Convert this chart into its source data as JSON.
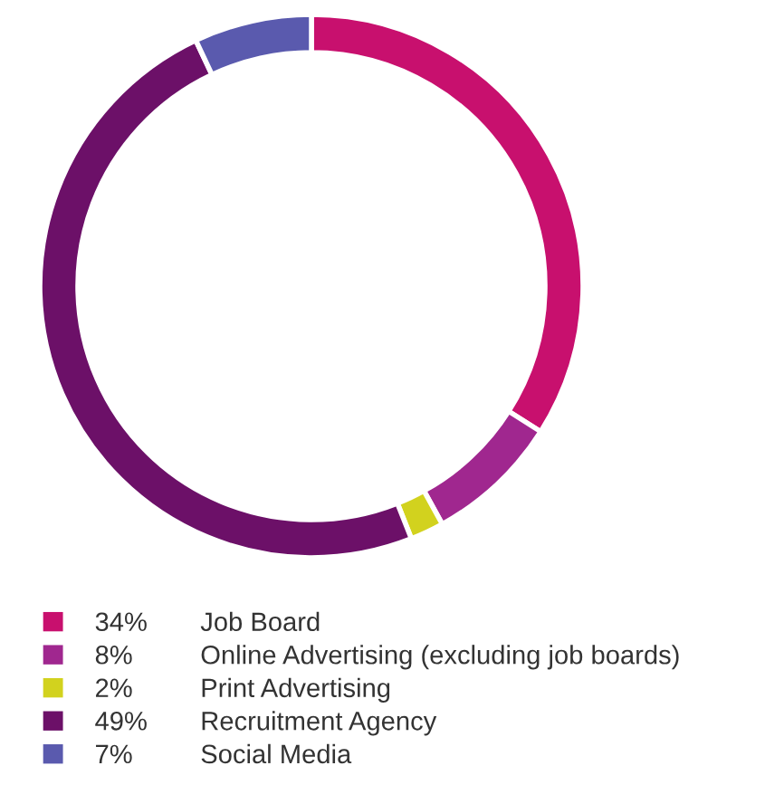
{
  "chart_data": {
    "type": "donut",
    "categories": [
      "Job Board",
      "Online Advertising (excluding job boards)",
      "Print Advertising",
      "Recruitment Agency",
      "Social Media"
    ],
    "values": [
      34,
      8,
      2,
      49,
      7
    ],
    "value_labels": [
      "34%",
      "8%",
      "2%",
      "49%",
      "7%"
    ],
    "colors": [
      "#c8106e",
      "#a0278f",
      "#d2d21e",
      "#6c1068",
      "#5a5aae"
    ],
    "legend": "bottom"
  }
}
